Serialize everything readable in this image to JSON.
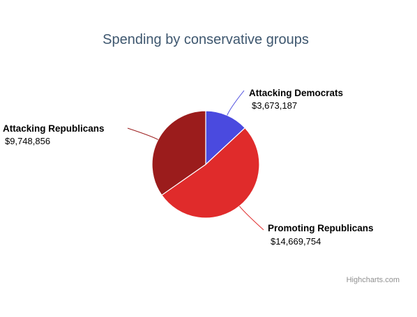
{
  "chart_data": {
    "type": "pie",
    "title": "Spending by conservative groups",
    "slices": [
      {
        "name": "Attacking Democrats",
        "value_label": "$3,673,187",
        "value": 3673187,
        "color": "#4a4adf"
      },
      {
        "name": "Promoting Republicans",
        "value_label": "$14,669,754",
        "value": 14669754,
        "color": "#e02b2b"
      },
      {
        "name": "Attacking Republicans",
        "value_label": "$9,748,856",
        "value": 9748856,
        "color": "#9b1c1c"
      }
    ],
    "start_angle_deg": 0,
    "direction": "clockwise"
  },
  "credits": "Highcharts.com"
}
